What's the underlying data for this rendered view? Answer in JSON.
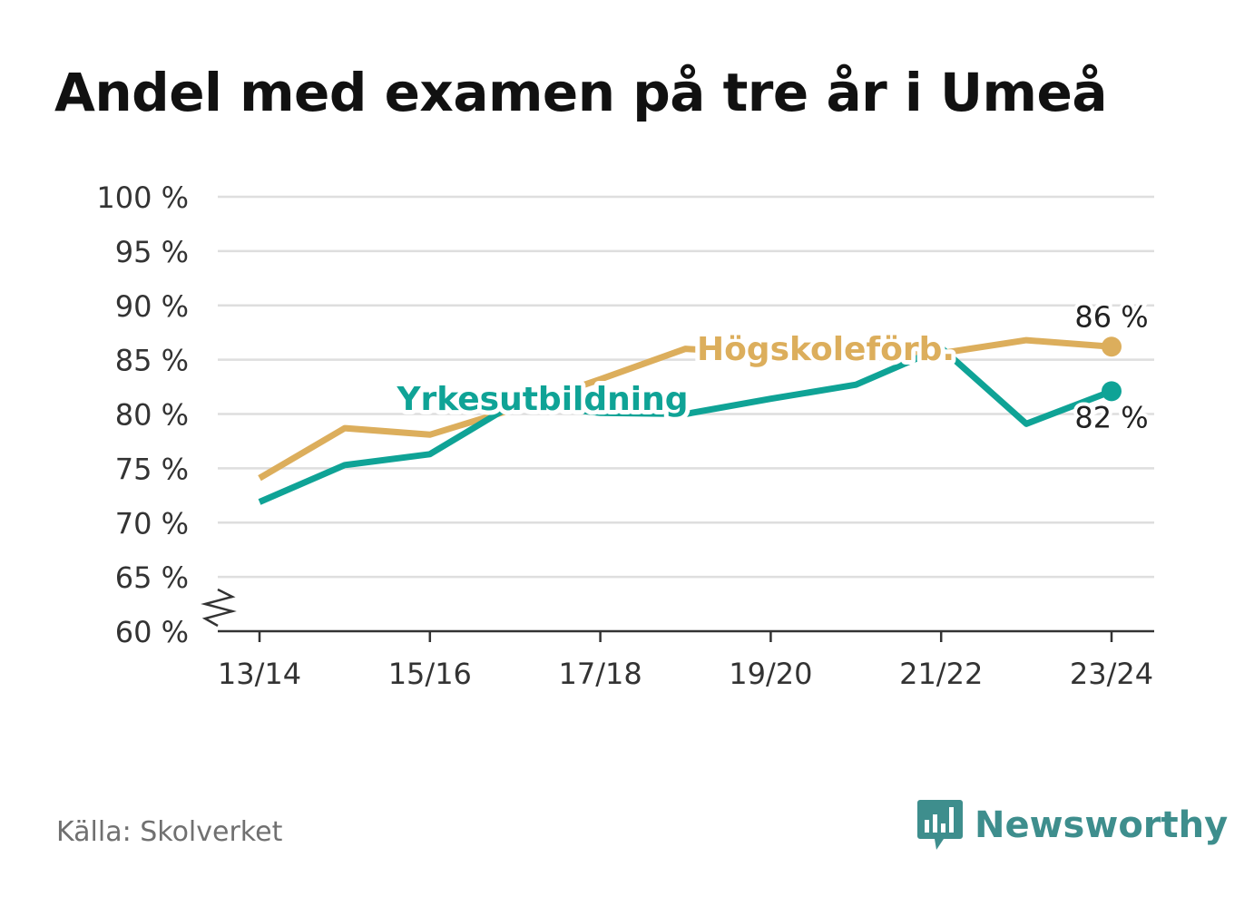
{
  "title": "Andel med examen på tre år i Umeå",
  "source": "Källa: Skolverket",
  "brand": {
    "name": "Newsworthy",
    "icon": "newsworthy-logo-icon",
    "color": "#3e8e8d"
  },
  "chart_data": {
    "type": "line",
    "title": "Andel med examen på tre år i Umeå",
    "x": [
      "13/14",
      "14/15",
      "15/16",
      "16/17",
      "17/18",
      "18/19",
      "19/20",
      "20/21",
      "21/22",
      "22/23",
      "23/24"
    ],
    "x_tick_labels": [
      "13/14",
      "15/16",
      "17/18",
      "19/20",
      "21/22",
      "23/24"
    ],
    "y_ticks": [
      60,
      65,
      70,
      75,
      80,
      85,
      90,
      95,
      100
    ],
    "y_tick_labels": [
      "60 %",
      "65 %",
      "70 %",
      "75 %",
      "80 %",
      "85 %",
      "90 %",
      "95 %",
      "100 %"
    ],
    "ylim": [
      60,
      100
    ],
    "y_axis_break": true,
    "grid": true,
    "series": [
      {
        "name": "Högskoleförb.",
        "color": "#dcae5c",
        "values": [
          74.1,
          78.7,
          78.1,
          80.5,
          83.2,
          86.0,
          85.5,
          85.4,
          85.6,
          86.8,
          86.2
        ],
        "end_label": "86 %"
      },
      {
        "name": "Yrkesutbildning",
        "color": "#0fa396",
        "values": [
          71.9,
          75.3,
          76.3,
          81.0,
          80.1,
          80.0,
          81.4,
          82.7,
          86.1,
          79.1,
          82.1
        ],
        "end_label": "82 %"
      }
    ]
  }
}
